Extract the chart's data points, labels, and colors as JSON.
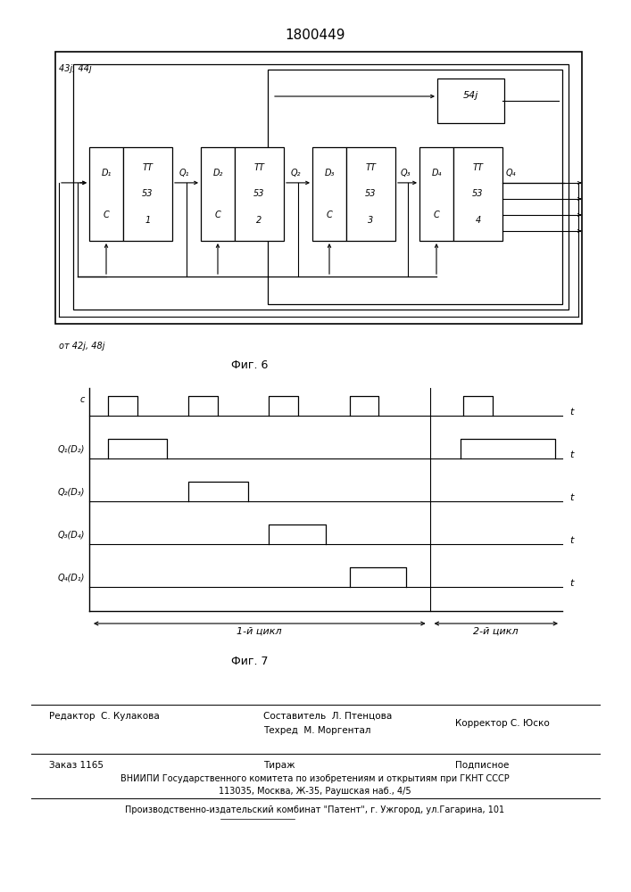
{
  "title": "1800449",
  "fig6_label": "Фиг. 6",
  "fig7_label": "Фиг. 7",
  "to_label": "43j, 44j",
  "from_label": "от 42j, 48j",
  "block54_label": "54j",
  "cycle1_label": "1-й цикл",
  "cycle2_label": "2-й цикл",
  "footer_editor": "Редактор  С. Кулакова",
  "footer_col2_line1": "Составитель  Л. Птенцова",
  "footer_col2_line2": "Техред  М. Моргентал",
  "footer_col3": "Корректор С. Юско",
  "footer_order": "Заказ 1165",
  "footer_tirazh": "Тираж",
  "footer_podp": "Подписное",
  "footer_vniiipi": "ВНИИПИ Государственного комитета по изобретениям и открытиям при ГКНТ СССР",
  "footer_addr": "113035, Москва, Ж-35, Раушская наб., 4/5",
  "footer_factory": "Производственно-издательский комбинат \"Патент\", г. Ужгород, ул.Гагарина, 101"
}
